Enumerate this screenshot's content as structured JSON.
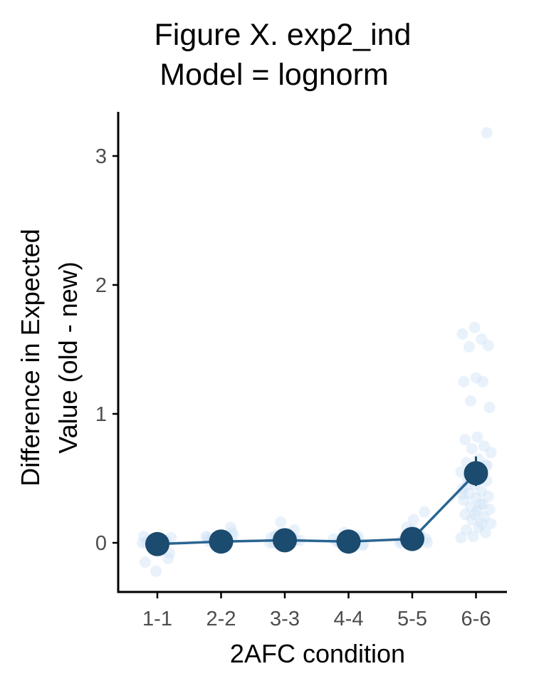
{
  "chart_data": {
    "type": "scatter",
    "title_lines": [
      "Figure X. exp2_ind",
      "Model = lognorm"
    ],
    "xlabel": "2AFC condition",
    "ylabel_lines": [
      "Difference in Expected",
      "Value (old - new)"
    ],
    "categories": [
      "1-1",
      "2-2",
      "3-3",
      "4-4",
      "5-5",
      "6-6"
    ],
    "ylim": [
      -0.38,
      3.35
    ],
    "yticks": [
      0,
      1,
      2,
      3
    ],
    "grid": false,
    "colors": {
      "mean": "#1b4b6e",
      "line": "#2a6592",
      "raw": "#cfe3f6"
    },
    "means": [
      -0.01,
      0.01,
      0.02,
      0.01,
      0.03,
      0.54
    ],
    "error_bars": [
      {
        "lo": -0.02,
        "hi": 0.0
      },
      {
        "lo": 0.0,
        "hi": 0.02
      },
      {
        "lo": 0.01,
        "hi": 0.03
      },
      {
        "lo": 0.0,
        "hi": 0.02
      },
      {
        "lo": 0.02,
        "hi": 0.05
      },
      {
        "lo": 0.44,
        "hi": 0.67
      }
    ],
    "raw_points": [
      [
        0.0,
        -0.05,
        0.02,
        -0.12,
        -0.22,
        0.05,
        -0.02,
        0.0,
        -0.08,
        0.03,
        -0.15,
        0.01,
        -0.03,
        0.04,
        -0.06,
        0.0,
        0.02,
        -0.01
      ],
      [
        0.0,
        0.03,
        0.12,
        -0.02,
        0.05,
        0.01,
        0.02,
        0.08,
        -0.01,
        0.04,
        0.0,
        0.02,
        0.06,
        -0.03,
        0.01,
        0.0
      ],
      [
        0.0,
        0.04,
        0.16,
        0.02,
        -0.01,
        0.05,
        0.1,
        0.03,
        0.0,
        0.01,
        0.06,
        0.02,
        -0.02,
        0.04
      ],
      [
        0.0,
        0.03,
        -0.02,
        0.06,
        0.01,
        0.04,
        0.08,
        -0.01,
        0.02,
        0.0,
        0.05,
        0.01,
        0.03
      ],
      [
        0.02,
        0.24,
        0.1,
        0.0,
        0.05,
        0.12,
        0.03,
        0.18,
        0.01,
        0.06,
        0.04,
        0.0,
        0.08,
        0.02
      ],
      [
        3.18,
        1.67,
        1.62,
        1.58,
        1.52,
        1.53,
        1.28,
        1.25,
        1.25,
        1.1,
        1.05,
        0.82,
        0.8,
        0.75,
        0.73,
        0.7,
        0.65,
        0.62,
        0.6,
        0.58,
        0.55,
        0.52,
        0.5,
        0.48,
        0.45,
        0.42,
        0.4,
        0.38,
        0.36,
        0.35,
        0.33,
        0.3,
        0.28,
        0.26,
        0.25,
        0.22,
        0.2,
        0.18,
        0.15,
        0.12,
        0.1,
        0.08,
        0.05,
        0.04,
        0.3,
        0.45,
        0.6,
        0.22,
        0.38,
        0.15
      ]
    ]
  }
}
